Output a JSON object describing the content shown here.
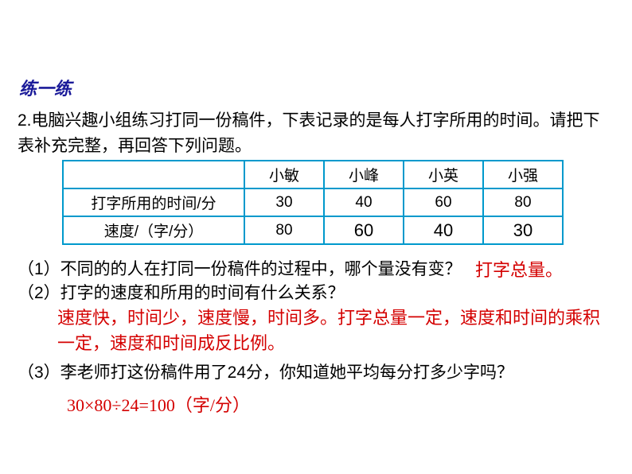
{
  "section_title": "练一练",
  "problem": {
    "number": "2.",
    "text": "电脑兴趣小组练习打同一份稿件，下表记录的是每人打字所用的时间。请把下表补充完整，再回答下列问题。"
  },
  "table": {
    "header": [
      "",
      "小敏",
      "小峰",
      "小英",
      "小强"
    ],
    "row1_label": "打字所用的时间/分",
    "row1_data": [
      "30",
      "40",
      "60",
      "80"
    ],
    "row2_label": "速度/（字/分）",
    "row2_data_given": "80",
    "row2_answers": [
      "60",
      "40",
      "30"
    ]
  },
  "questions": {
    "q1": "（1）不同的的人在打同一份稿件的过程中，哪个量没有变？",
    "a1": "打字总量。",
    "q2": "（2）打字的速度和所用的时间有什么关系？",
    "a2": "速度快，时间少，速度慢，时间多。打字总量一定，速度和时间的乘积一定，速度和时间成反比例。",
    "q3": "（3）李老师打这份稿件用了24分，你知道她平均每分打多少字吗？",
    "a3": "30×80÷24=100（字/分）"
  },
  "colors": {
    "title": "#1a1a99",
    "text": "#000000",
    "answer_red": "#d40000",
    "answer_purple": "#6633cc",
    "table_border": "#0099cc",
    "background": "#ffffff"
  }
}
